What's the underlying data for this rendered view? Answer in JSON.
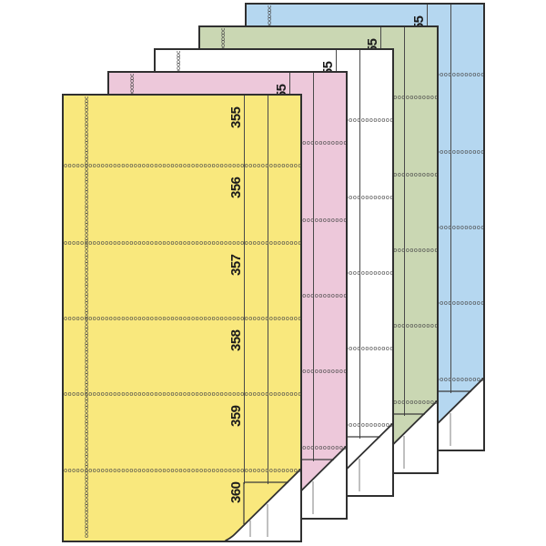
{
  "stack": {
    "numbers": [
      "355",
      "356",
      "357",
      "358",
      "359",
      "360"
    ],
    "sheets": [
      {
        "name": "blue",
        "fill": "#b5d7f0"
      },
      {
        "name": "green",
        "fill": "#cad7b3"
      },
      {
        "name": "white",
        "fill": "#ffffff"
      },
      {
        "name": "pink",
        "fill": "#edc8da"
      },
      {
        "name": "yellow",
        "fill": "#f9e87d"
      }
    ],
    "colors": {
      "edge": "#303030",
      "rule_line": "#4a4a4a",
      "perforation": "#4a4a4a",
      "number_text": "#1b1b1b",
      "fold_underside": "#ffffff",
      "fold_stub_line": "#979797",
      "background": "#ffffff"
    }
  }
}
